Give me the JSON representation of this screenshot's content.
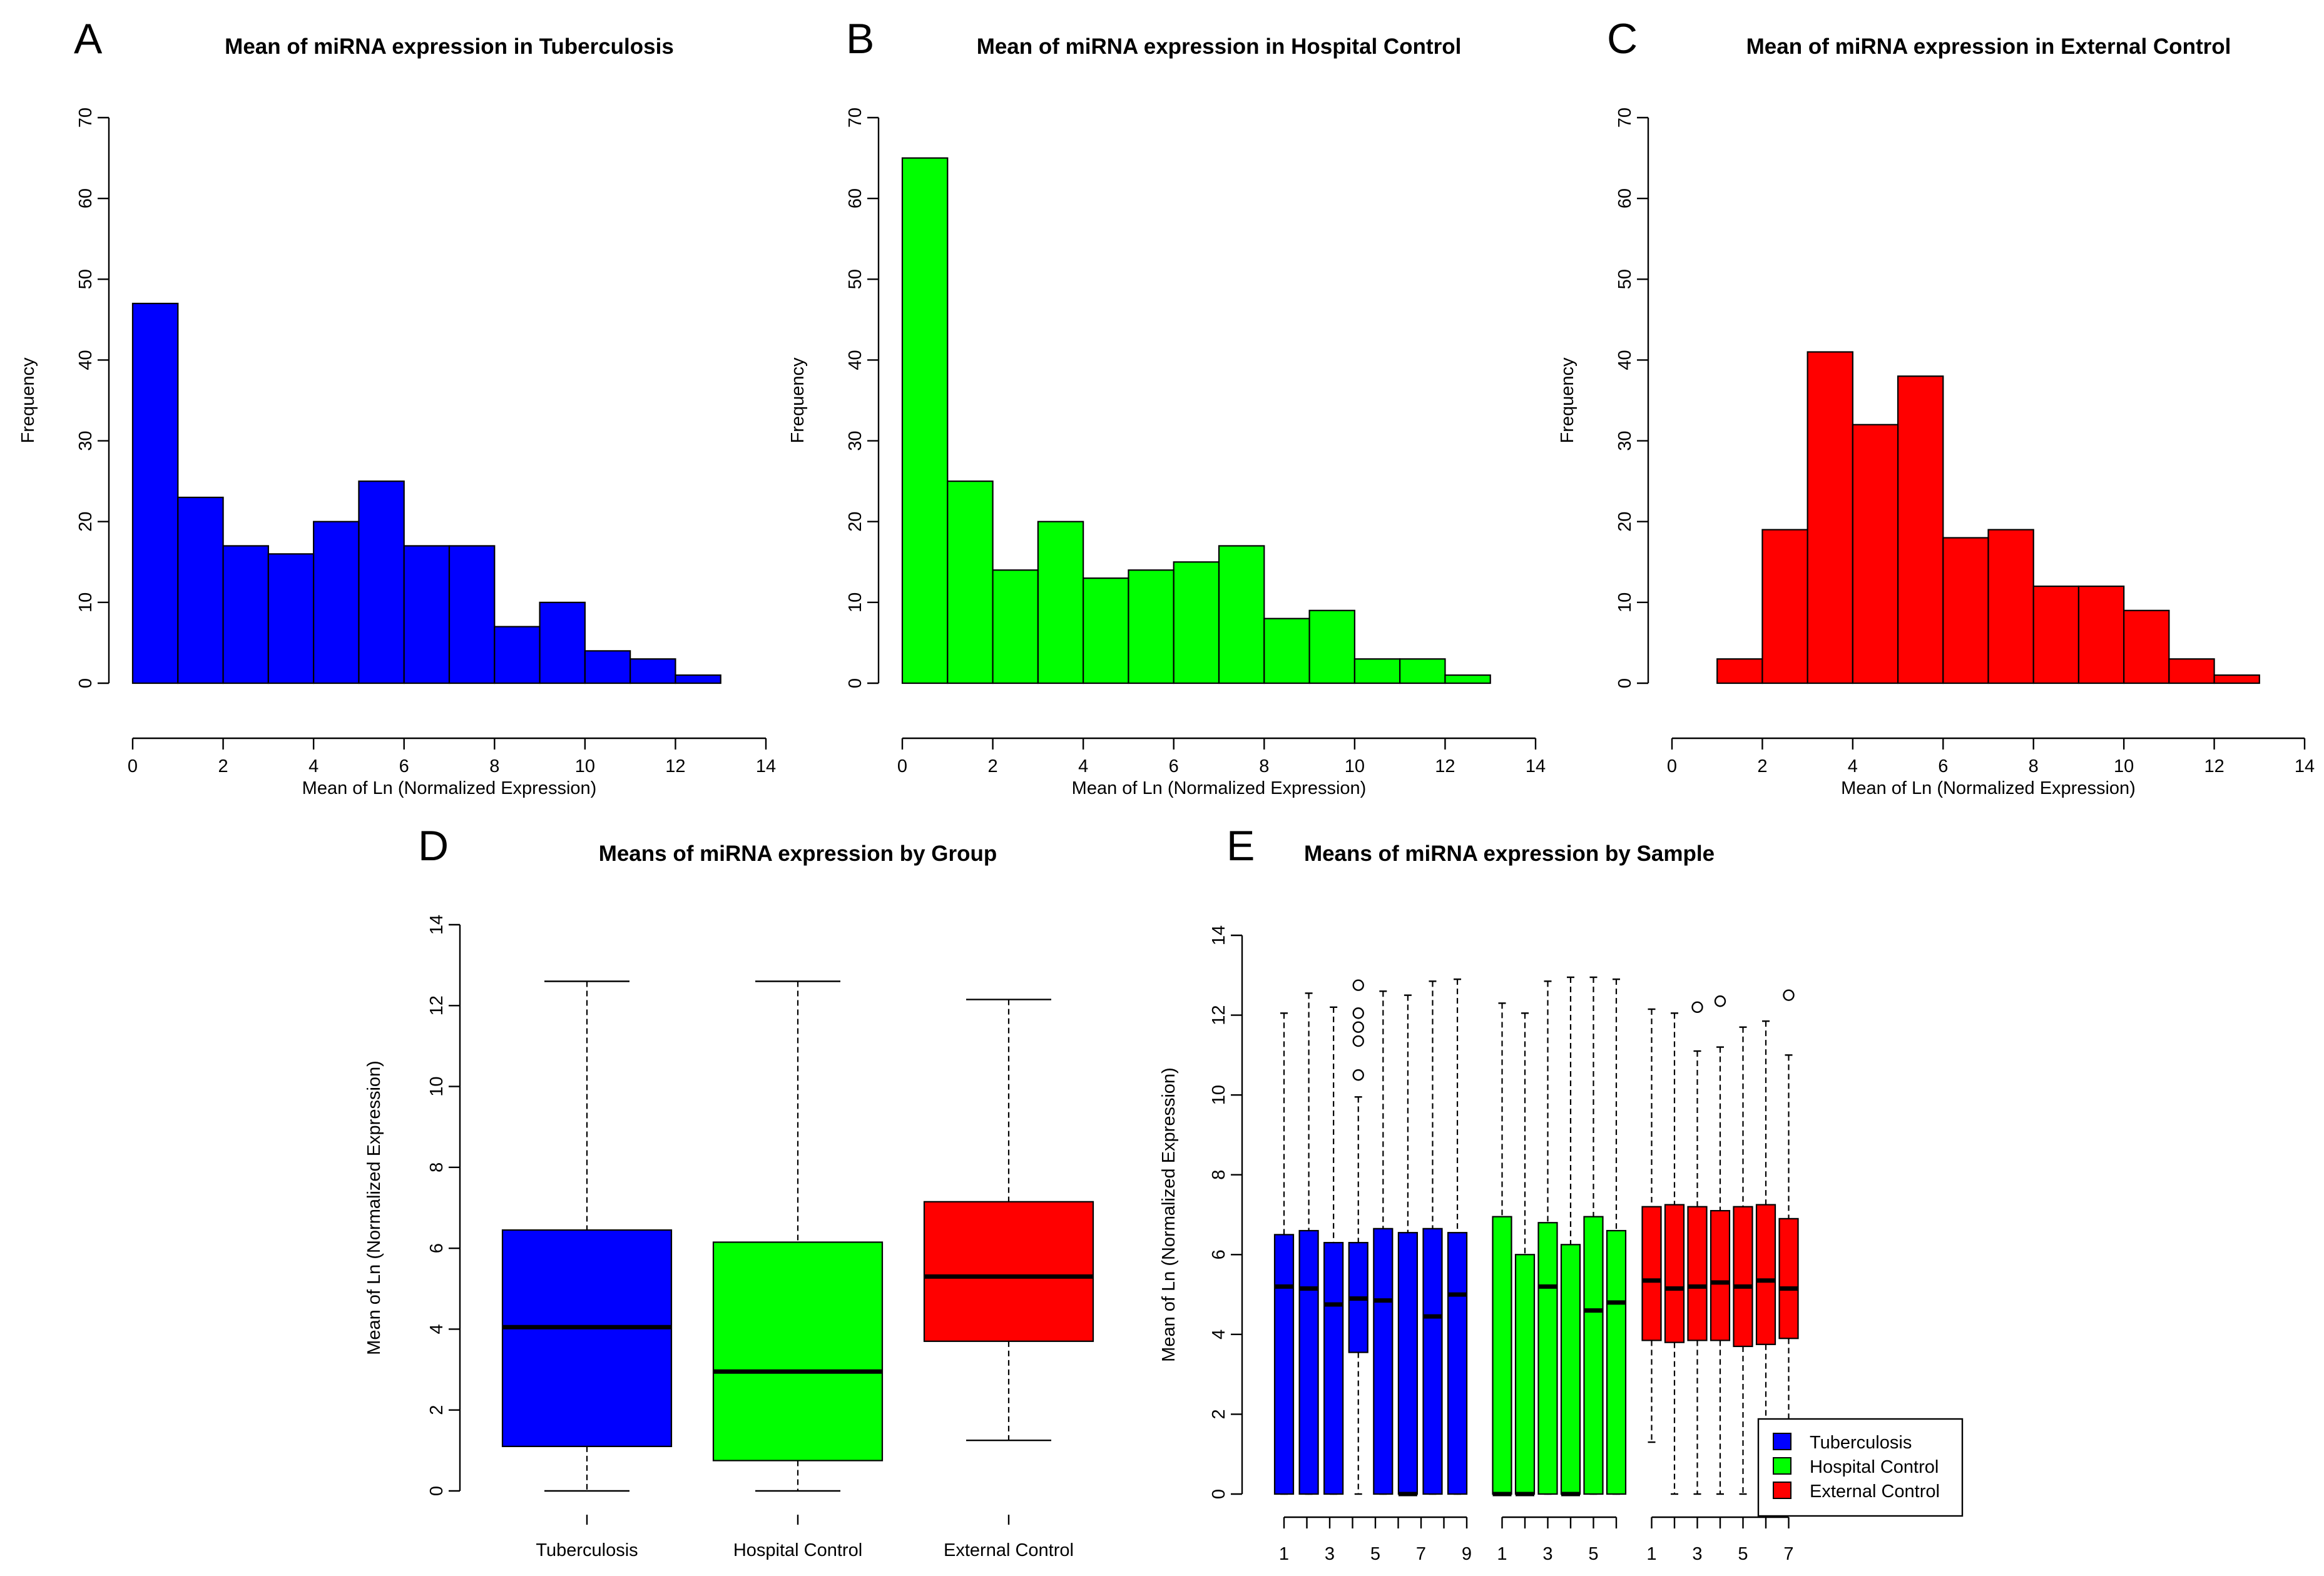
{
  "figure": {
    "panel_letters": [
      "A",
      "B",
      "C",
      "D",
      "E"
    ]
  },
  "chart_data": [
    {
      "panel": "A",
      "type": "bar",
      "subtype": "histogram",
      "title": "Mean of miRNA expression in Tuberculosis",
      "xlabel": "Mean of Ln (Normalized Expression)",
      "ylabel": "Frequency",
      "xlim": [
        0,
        14
      ],
      "ylim": [
        0,
        70
      ],
      "xticks": [
        0,
        2,
        4,
        6,
        8,
        10,
        12,
        14
      ],
      "yticks": [
        0,
        10,
        20,
        30,
        40,
        50,
        60,
        70
      ],
      "bin_start": 0,
      "bin_width": 1,
      "values": [
        47,
        23,
        17,
        16,
        20,
        25,
        17,
        17,
        7,
        10,
        4,
        3,
        1
      ],
      "color": "#0000ff"
    },
    {
      "panel": "B",
      "type": "bar",
      "subtype": "histogram",
      "title": "Mean of miRNA expression in Hospital Control",
      "xlabel": "Mean of Ln (Normalized Expression)",
      "ylabel": "Frequency",
      "xlim": [
        0,
        14
      ],
      "ylim": [
        0,
        70
      ],
      "xticks": [
        0,
        2,
        4,
        6,
        8,
        10,
        12,
        14
      ],
      "yticks": [
        0,
        10,
        20,
        30,
        40,
        50,
        60,
        70
      ],
      "bin_start": 0,
      "bin_width": 1,
      "values": [
        65,
        25,
        14,
        20,
        13,
        14,
        15,
        17,
        8,
        9,
        3,
        3,
        1
      ],
      "color": "#00ff00"
    },
    {
      "panel": "C",
      "type": "bar",
      "subtype": "histogram",
      "title": "Mean of miRNA expression in External Control",
      "xlabel": "Mean of Ln (Normalized Expression)",
      "ylabel": "Frequency",
      "xlim": [
        0,
        14
      ],
      "ylim": [
        0,
        70
      ],
      "xticks": [
        0,
        2,
        4,
        6,
        8,
        10,
        12,
        14
      ],
      "yticks": [
        0,
        10,
        20,
        30,
        40,
        50,
        60,
        70
      ],
      "bin_start": 1,
      "bin_width": 1,
      "values": [
        3,
        19,
        41,
        32,
        38,
        18,
        19,
        12,
        12,
        9,
        3,
        1
      ],
      "color": "#ff0000"
    },
    {
      "panel": "D",
      "type": "box",
      "title": "Means of miRNA expression by Group",
      "xlabel": "",
      "ylabel": "Mean of Ln (Normalized Expression)",
      "ylim": [
        0,
        14
      ],
      "yticks": [
        0,
        2,
        4,
        6,
        8,
        10,
        12,
        14
      ],
      "categories": [
        "Tuberculosis",
        "Hospital Control",
        "External Control"
      ],
      "colors": [
        "#0000ff",
        "#00ff00",
        "#ff0000"
      ],
      "boxes": [
        {
          "min": 0,
          "q1": 1.1,
          "median": 4.05,
          "q3": 6.45,
          "max": 12.6
        },
        {
          "min": 0,
          "q1": 0.75,
          "median": 2.95,
          "q3": 6.15,
          "max": 12.6
        },
        {
          "min": 1.25,
          "q1": 3.7,
          "median": 5.3,
          "q3": 7.15,
          "max": 12.15
        }
      ]
    },
    {
      "panel": "E",
      "type": "box",
      "title": "Means of miRNA expression by Sample",
      "xlabel": "",
      "ylabel": "Mean of Ln (Normalized Expression)",
      "ylim": [
        0,
        14
      ],
      "yticks": [
        0,
        2,
        4,
        6,
        8,
        10,
        12,
        14
      ],
      "group_ticks": [
        [
          "1",
          "3",
          "5",
          "7",
          "9"
        ],
        [
          "1",
          "3",
          "5"
        ],
        [
          "1",
          "3",
          "5",
          "7"
        ]
      ],
      "legend": [
        {
          "label": "Tuberculosis",
          "color": "#0000ff"
        },
        {
          "label": "Hospital Control",
          "color": "#00ff00"
        },
        {
          "label": "External Control",
          "color": "#ff0000"
        }
      ],
      "legend_position": "bottom-right",
      "samples": [
        {
          "group": 0,
          "min": 0,
          "q1": 0,
          "median": 5.2,
          "q3": 6.5,
          "max": 12.05,
          "outliers": []
        },
        {
          "group": 0,
          "min": 0,
          "q1": 0,
          "median": 5.15,
          "q3": 6.6,
          "max": 12.55,
          "outliers": []
        },
        {
          "group": 0,
          "min": 0,
          "q1": 0,
          "median": 4.75,
          "q3": 6.3,
          "max": 12.2,
          "outliers": []
        },
        {
          "group": 0,
          "min": 0,
          "q1": 3.55,
          "median": 4.9,
          "q3": 6.3,
          "max": 9.95,
          "outliers": [
            10.5,
            11.35,
            11.7,
            12.05,
            12.75
          ]
        },
        {
          "group": 0,
          "min": 0,
          "q1": 0,
          "median": 4.85,
          "q3": 6.65,
          "max": 12.6,
          "outliers": []
        },
        {
          "group": 0,
          "min": 0,
          "q1": 0,
          "median": 0,
          "q3": 6.55,
          "max": 12.5,
          "outliers": []
        },
        {
          "group": 0,
          "min": 0,
          "q1": 0,
          "median": 4.45,
          "q3": 6.65,
          "max": 12.85,
          "outliers": []
        },
        {
          "group": 0,
          "min": 0,
          "q1": 0,
          "median": 5.0,
          "q3": 6.55,
          "max": 12.9,
          "outliers": []
        },
        {
          "group": 1,
          "min": 0,
          "q1": 0,
          "median": 0,
          "q3": 6.95,
          "max": 12.3,
          "outliers": []
        },
        {
          "group": 1,
          "min": 0,
          "q1": 0,
          "median": 0,
          "q3": 6.0,
          "max": 12.05,
          "outliers": []
        },
        {
          "group": 1,
          "min": 0,
          "q1": 0,
          "median": 5.2,
          "q3": 6.8,
          "max": 12.85,
          "outliers": []
        },
        {
          "group": 1,
          "min": 0,
          "q1": 0,
          "median": 0,
          "q3": 6.25,
          "max": 12.95,
          "outliers": []
        },
        {
          "group": 1,
          "min": 0,
          "q1": 0,
          "median": 4.6,
          "q3": 6.95,
          "max": 12.95,
          "outliers": []
        },
        {
          "group": 1,
          "min": 0,
          "q1": 0,
          "median": 4.8,
          "q3": 6.6,
          "max": 12.9,
          "outliers": []
        },
        {
          "group": 2,
          "min": 1.3,
          "q1": 3.85,
          "median": 5.35,
          "q3": 7.2,
          "max": 12.15,
          "outliers": []
        },
        {
          "group": 2,
          "min": 0,
          "q1": 3.8,
          "median": 5.15,
          "q3": 7.25,
          "max": 12.05,
          "outliers": []
        },
        {
          "group": 2,
          "min": 0,
          "q1": 3.85,
          "median": 5.2,
          "q3": 7.2,
          "max": 11.1,
          "outliers": [
            12.2
          ]
        },
        {
          "group": 2,
          "min": 0,
          "q1": 3.85,
          "median": 5.3,
          "q3": 7.1,
          "max": 11.2,
          "outliers": [
            12.35
          ]
        },
        {
          "group": 2,
          "min": 0,
          "q1": 3.7,
          "median": 5.2,
          "q3": 7.2,
          "max": 11.7,
          "outliers": []
        },
        {
          "group": 2,
          "min": 0,
          "q1": 3.75,
          "median": 5.35,
          "q3": 7.25,
          "max": 11.85,
          "outliers": []
        },
        {
          "group": 2,
          "min": 0,
          "q1": 3.9,
          "median": 5.15,
          "q3": 6.9,
          "max": 11.0,
          "outliers": [
            12.5
          ]
        }
      ]
    }
  ]
}
